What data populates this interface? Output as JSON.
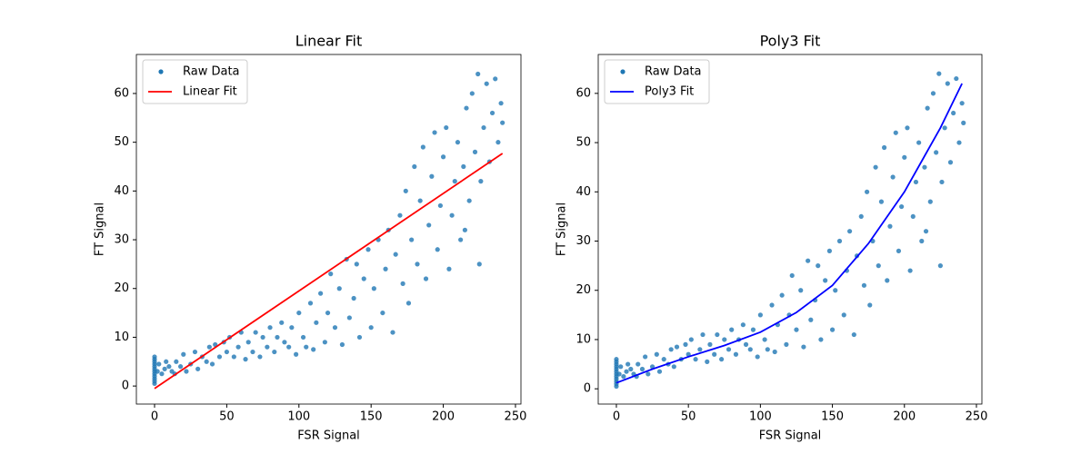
{
  "chart_data": [
    {
      "type": "scatter",
      "title": "Linear Fit",
      "x_label": "FSR Signal",
      "y_label": "FT Signal",
      "legend": "upper left",
      "xlim": [
        -12.6,
        253.8
      ],
      "ylim": [
        -3.7,
        68.0
      ],
      "xticks": [
        0,
        50,
        100,
        150,
        200,
        250
      ],
      "yticks": [
        0,
        10,
        20,
        30,
        40,
        50,
        60
      ],
      "series": [
        {
          "name": "Raw Data",
          "type": "scatter",
          "color": "#1f77b4",
          "x": [
            0,
            0,
            0,
            0,
            0,
            0,
            0,
            0,
            0,
            0,
            0,
            0,
            2,
            3,
            5,
            7,
            8,
            10,
            12,
            14,
            15,
            18,
            20,
            22,
            25,
            28,
            30,
            33,
            36,
            38,
            40,
            42,
            45,
            48,
            50,
            52,
            55,
            58,
            60,
            63,
            65,
            68,
            70,
            73,
            75,
            78,
            80,
            83,
            85,
            88,
            90,
            93,
            95,
            98,
            100,
            103,
            105,
            108,
            110,
            112,
            115,
            118,
            120,
            122,
            125,
            128,
            130,
            133,
            135,
            138,
            140,
            142,
            145,
            148,
            150,
            152,
            155,
            158,
            160,
            162,
            165,
            167,
            170,
            172,
            174,
            176,
            178,
            180,
            182,
            184,
            186,
            188,
            190,
            192,
            194,
            196,
            198,
            200,
            202,
            204,
            206,
            208,
            210,
            212,
            214,
            216,
            218,
            220,
            222,
            224,
            226,
            228,
            230,
            232,
            234,
            236,
            238,
            240,
            241,
            225,
            215
          ],
          "values": [
            0.5,
            1,
            1.5,
            2,
            2.5,
            3,
            3.5,
            4,
            4.5,
            5,
            5.5,
            6,
            3,
            4.5,
            2.5,
            3.5,
            5,
            4,
            3,
            2.5,
            5,
            4,
            6.5,
            3,
            4.5,
            7,
            3.5,
            6,
            5,
            8,
            4.5,
            8.5,
            6,
            9,
            7,
            10,
            6,
            8,
            11,
            5.5,
            9,
            7,
            11,
            6,
            10,
            8,
            12,
            7,
            10,
            13,
            9,
            8,
            12,
            6.5,
            15,
            10,
            8,
            17,
            7.5,
            13,
            19,
            9,
            15,
            23,
            12,
            20,
            8.5,
            26,
            14,
            18,
            25,
            10,
            22,
            28,
            12,
            20,
            30,
            15,
            24,
            32,
            11,
            27,
            35,
            21,
            40,
            17,
            30,
            45,
            25,
            38,
            49,
            22,
            33,
            43,
            52,
            28,
            37,
            47,
            53,
            24,
            35,
            42,
            50,
            30,
            45,
            57,
            38,
            60,
            48,
            64,
            42,
            53,
            62,
            46,
            56,
            63,
            50,
            58,
            54,
            25,
            32
          ]
        },
        {
          "name": "Linear Fit",
          "type": "line",
          "color": "#ff0000",
          "x": [
            0,
            241
          ],
          "values": [
            -0.5,
            47.7
          ]
        }
      ]
    },
    {
      "type": "scatter",
      "title": "Poly3 Fit",
      "x_label": "FSR Signal",
      "y_label": "FT Signal",
      "legend": "upper left",
      "xlim": [
        -12.6,
        253.8
      ],
      "ylim": [
        -3.1,
        67.9
      ],
      "xticks": [
        0,
        50,
        100,
        150,
        200,
        250
      ],
      "yticks": [
        0,
        10,
        20,
        30,
        40,
        50,
        60
      ],
      "series": [
        {
          "name": "Raw Data",
          "type": "scatter",
          "color": "#1f77b4",
          "x": [
            0,
            0,
            0,
            0,
            0,
            0,
            0,
            0,
            0,
            0,
            0,
            0,
            2,
            3,
            5,
            7,
            8,
            10,
            12,
            14,
            15,
            18,
            20,
            22,
            25,
            28,
            30,
            33,
            36,
            38,
            40,
            42,
            45,
            48,
            50,
            52,
            55,
            58,
            60,
            63,
            65,
            68,
            70,
            73,
            75,
            78,
            80,
            83,
            85,
            88,
            90,
            93,
            95,
            98,
            100,
            103,
            105,
            108,
            110,
            112,
            115,
            118,
            120,
            122,
            125,
            128,
            130,
            133,
            135,
            138,
            140,
            142,
            145,
            148,
            150,
            152,
            155,
            158,
            160,
            162,
            165,
            167,
            170,
            172,
            174,
            176,
            178,
            180,
            182,
            184,
            186,
            188,
            190,
            192,
            194,
            196,
            198,
            200,
            202,
            204,
            206,
            208,
            210,
            212,
            214,
            216,
            218,
            220,
            222,
            224,
            226,
            228,
            230,
            232,
            234,
            236,
            238,
            240,
            241,
            225,
            215
          ],
          "values": [
            0.5,
            1,
            1.5,
            2,
            2.5,
            3,
            3.5,
            4,
            4.5,
            5,
            5.5,
            6,
            3,
            4.5,
            2.5,
            3.5,
            5,
            4,
            3,
            2.5,
            5,
            4,
            6.5,
            3,
            4.5,
            7,
            3.5,
            6,
            5,
            8,
            4.5,
            8.5,
            6,
            9,
            7,
            10,
            6,
            8,
            11,
            5.5,
            9,
            7,
            11,
            6,
            10,
            8,
            12,
            7,
            10,
            13,
            9,
            8,
            12,
            6.5,
            15,
            10,
            8,
            17,
            7.5,
            13,
            19,
            9,
            15,
            23,
            12,
            20,
            8.5,
            26,
            14,
            18,
            25,
            10,
            22,
            28,
            12,
            20,
            30,
            15,
            24,
            32,
            11,
            27,
            35,
            21,
            40,
            17,
            30,
            45,
            25,
            38,
            49,
            22,
            33,
            43,
            52,
            28,
            37,
            47,
            53,
            24,
            35,
            42,
            50,
            30,
            45,
            57,
            38,
            60,
            48,
            64,
            42,
            53,
            62,
            46,
            56,
            63,
            50,
            58,
            54,
            25,
            32
          ]
        },
        {
          "name": "Poly3 Fit",
          "type": "line",
          "color": "#0000ff",
          "x": [
            0,
            25,
            50,
            75,
            100,
            125,
            150,
            175,
            200,
            225,
            240
          ],
          "values": [
            1.2,
            4,
            6.5,
            8.8,
            11.5,
            15.5,
            21,
            29.5,
            40,
            53,
            62
          ]
        }
      ]
    }
  ]
}
